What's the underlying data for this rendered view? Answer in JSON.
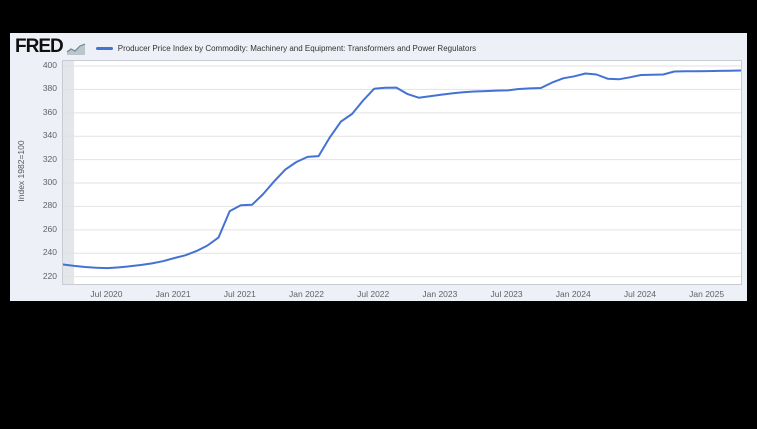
{
  "header": {
    "logo_text": "FRED"
  },
  "colors": {
    "frame": "#000000",
    "window_bg": "#edf1f7",
    "plot_bg": "#ffffff",
    "plot_border": "#c9cdd3",
    "grid": "#e2e2e2",
    "recession_band": "#e3e6eb",
    "series": "#4472d4",
    "tick_text": "#5f6368",
    "legend_text": "#333333"
  },
  "chart_data": {
    "type": "line",
    "title": "Producer Price Index by Commodity: Machinery and Equipment: Transformers and Power Regulators",
    "ylabel": "Index 1982=100",
    "legend_position": "top",
    "grid": "horizontal",
    "ylim": [
      213.7,
      404.3
    ],
    "y_ticks": [
      220,
      240,
      260,
      280,
      300,
      320,
      340,
      360,
      380,
      400
    ],
    "series_color": "#4472d4",
    "recession_bands": [
      {
        "start_index": 0,
        "end_index": 1
      }
    ],
    "x_tick_labels": [
      {
        "index": 4,
        "label": "Jul 2020"
      },
      {
        "index": 10,
        "label": "Jan 2021"
      },
      {
        "index": 16,
        "label": "Jul 2021"
      },
      {
        "index": 22,
        "label": "Jan 2022"
      },
      {
        "index": 28,
        "label": "Jul 2022"
      },
      {
        "index": 34,
        "label": "Jan 2023"
      },
      {
        "index": 40,
        "label": "Jul 2023"
      },
      {
        "index": 46,
        "label": "Jan 2024"
      },
      {
        "index": 52,
        "label": "Jul 2024"
      },
      {
        "index": 58,
        "label": "Jan 2025"
      }
    ],
    "x": [
      "2020-03",
      "2020-04",
      "2020-05",
      "2020-06",
      "2020-07",
      "2020-08",
      "2020-09",
      "2020-10",
      "2020-11",
      "2020-12",
      "2021-01",
      "2021-02",
      "2021-03",
      "2021-04",
      "2021-05",
      "2021-06",
      "2021-07",
      "2021-08",
      "2021-09",
      "2021-10",
      "2021-11",
      "2021-12",
      "2022-01",
      "2022-02",
      "2022-03",
      "2022-04",
      "2022-05",
      "2022-06",
      "2022-07",
      "2022-08",
      "2022-09",
      "2022-10",
      "2022-11",
      "2022-12",
      "2023-01",
      "2023-02",
      "2023-03",
      "2023-04",
      "2023-05",
      "2023-06",
      "2023-07",
      "2023-08",
      "2023-09",
      "2023-10",
      "2023-11",
      "2023-12",
      "2024-01",
      "2024-02",
      "2024-03",
      "2024-04",
      "2024-05",
      "2024-06",
      "2024-07",
      "2024-08",
      "2024-09",
      "2024-10",
      "2024-11",
      "2024-12",
      "2025-01",
      "2025-02",
      "2025-03",
      "2025-04"
    ],
    "values": [
      230.4,
      229.2,
      228.2,
      227.6,
      227.3,
      227.9,
      228.8,
      229.9,
      231.3,
      233.2,
      235.8,
      238.2,
      241.8,
      246.6,
      253.5,
      276.0,
      281.0,
      281.4,
      290.5,
      301.5,
      311.5,
      318.0,
      322.3,
      323.0,
      339.0,
      352.5,
      359.0,
      370.5,
      380.6,
      381.5,
      381.6,
      376.0,
      372.9,
      374.2,
      375.4,
      376.6,
      377.6,
      378.2,
      378.6,
      379.0,
      379.2,
      380.4,
      380.9,
      381.2,
      385.8,
      389.5,
      391.2,
      393.6,
      392.8,
      389.2,
      388.7,
      390.4,
      392.3,
      392.6,
      392.8,
      395.3,
      395.6,
      395.5,
      395.7,
      395.8,
      395.9,
      396.2
    ]
  }
}
